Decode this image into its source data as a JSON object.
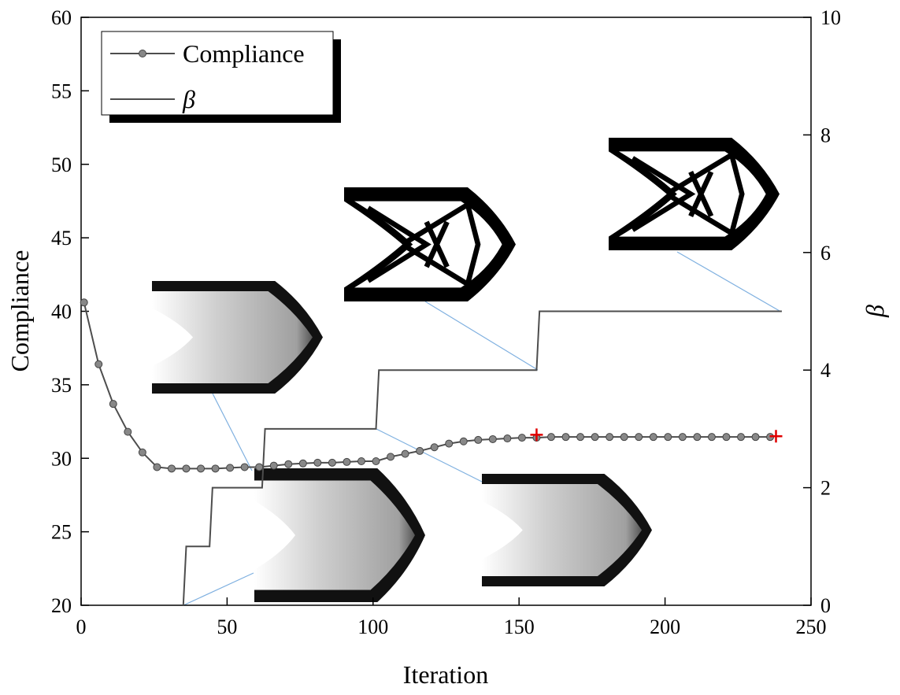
{
  "chart_data": {
    "type": "line",
    "xlabel": "Iteration",
    "ylabel": "Compliance",
    "y2label": "β",
    "xlim": [
      0,
      250
    ],
    "xticks": [
      0,
      50,
      100,
      150,
      200,
      250
    ],
    "ylim": [
      20,
      60
    ],
    "yticks": [
      20,
      25,
      30,
      35,
      40,
      45,
      50,
      55,
      60
    ],
    "y2lim": [
      0,
      10
    ],
    "y2ticks": [
      0,
      2,
      4,
      6,
      8,
      10
    ],
    "legend": "upper left",
    "series": [
      {
        "name": "Compliance",
        "color": "#4d4d4d",
        "marker": "circle",
        "x": [
          1,
          6,
          11,
          16,
          21,
          26,
          31,
          36,
          41,
          46,
          51,
          56,
          61,
          66,
          71,
          76,
          81,
          86,
          91,
          96,
          101,
          106,
          111,
          116,
          121,
          126,
          131,
          136,
          141,
          146,
          151,
          156,
          161,
          166,
          171,
          176,
          181,
          186,
          191,
          196,
          201,
          206,
          211,
          216,
          221,
          226,
          231,
          236
        ],
        "values": [
          40.6,
          36.4,
          33.7,
          31.8,
          30.4,
          29.4,
          29.3,
          29.3,
          29.3,
          29.3,
          29.35,
          29.4,
          29.4,
          29.5,
          29.6,
          29.65,
          29.7,
          29.7,
          29.75,
          29.8,
          29.8,
          30.1,
          30.3,
          30.5,
          30.75,
          31.0,
          31.15,
          31.25,
          31.3,
          31.35,
          31.4,
          31.4,
          31.45,
          31.45,
          31.45,
          31.45,
          31.45,
          31.45,
          31.45,
          31.45,
          31.45,
          31.45,
          31.45,
          31.45,
          31.45,
          31.45,
          31.45,
          31.45
        ]
      },
      {
        "name": "β",
        "color": "#4d4d4d",
        "axis": "y2",
        "x": [
          35,
          36,
          44,
          45,
          62,
          63,
          101,
          102,
          156,
          157,
          240
        ],
        "values": [
          0,
          1,
          1,
          2,
          2,
          3,
          3,
          4,
          4,
          5,
          5
        ]
      }
    ],
    "highlights": {
      "color": "#e00000",
      "x": [
        156,
        238
      ],
      "values": [
        31.6,
        31.5
      ]
    }
  }
}
